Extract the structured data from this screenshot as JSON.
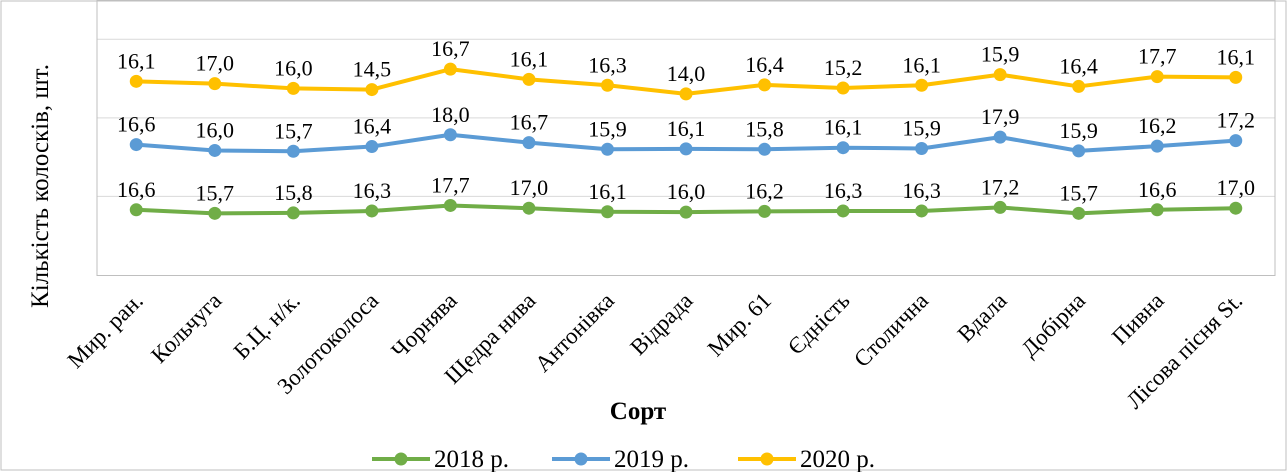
{
  "chart_data": {
    "type": "line",
    "xlabel": "Сорт",
    "ylabel": "Кількість колосків, шт.",
    "categories": [
      "Мир. ран.",
      "Кольчуга",
      "Б.Ц. н/к.",
      "Золотоколоса",
      "Чорнява",
      "Щедра нива",
      "Антонівка",
      "Відрада",
      "Мир. 61",
      "Єдність",
      "Столична",
      "Вдала",
      "Добірна",
      "Пивна",
      "Лісова пісня St."
    ],
    "series": [
      {
        "name": "2018 р.",
        "color": "#70ad47",
        "values": [
          16.6,
          15.7,
          15.8,
          16.3,
          17.7,
          17.0,
          16.1,
          16.0,
          16.2,
          16.3,
          16.3,
          17.2,
          15.7,
          16.6,
          17.0
        ],
        "labels": [
          "16,6",
          "15,7",
          "15,8",
          "16,3",
          "17,7",
          "17,0",
          "16,1",
          "16,0",
          "16,2",
          "16,3",
          "16,3",
          "17,2",
          "15,7",
          "16,6",
          "17,0"
        ]
      },
      {
        "name": "2019 р.",
        "color": "#5b9bd5",
        "values": [
          16.6,
          16.0,
          15.7,
          16.4,
          18.0,
          16.7,
          15.9,
          16.1,
          15.8,
          16.1,
          15.9,
          17.9,
          15.9,
          16.2,
          17.2
        ],
        "labels": [
          "16,6",
          "16,0",
          "15,7",
          "16,4",
          "18,0",
          "16,7",
          "15,9",
          "16,1",
          "15,8",
          "16,1",
          "15,9",
          "17,9",
          "15,9",
          "16,2",
          "17,2"
        ]
      },
      {
        "name": "2020 р.",
        "color": "#ffc000",
        "values": [
          16.1,
          17.0,
          16.0,
          14.5,
          16.7,
          16.1,
          16.3,
          14.0,
          16.4,
          15.2,
          16.1,
          15.9,
          16.4,
          17.7,
          16.1
        ],
        "labels": [
          "16,1",
          "17,0",
          "16,0",
          "14,5",
          "16,7",
          "16,1",
          "16,3",
          "14,0",
          "16,4",
          "15,2",
          "16,1",
          "15,9",
          "16,4",
          "17,7",
          "16,1"
        ]
      }
    ],
    "stacked": true,
    "y_axis_labels_shown": false,
    "grid": "horizontal",
    "legend_position": "bottom"
  }
}
